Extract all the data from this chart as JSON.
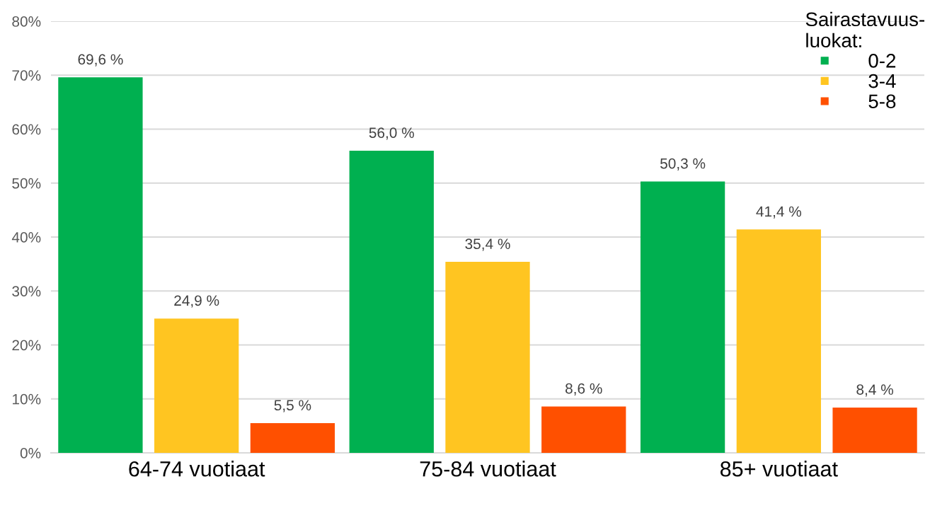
{
  "chart_data": {
    "type": "bar",
    "categories": [
      "64-74 vuotiaat",
      "75-84 vuotiaat",
      "85+ vuotiaat"
    ],
    "series": [
      {
        "name": "0-2",
        "color": "#00b050",
        "values": [
          69.6,
          56.0,
          50.3
        ],
        "value_labels": [
          "69,6 %",
          "56,0 %",
          "50,3 %"
        ]
      },
      {
        "name": "3-4",
        "color": "#ffc521",
        "values": [
          24.9,
          35.4,
          41.4
        ],
        "value_labels": [
          "24,9 %",
          "35,4 %",
          "41,4 %"
        ]
      },
      {
        "name": "5-8",
        "color": "#ff5000",
        "values": [
          5.5,
          8.6,
          8.4
        ],
        "value_labels": [
          "5,5 %",
          "8,6 %",
          "8,4 %"
        ]
      }
    ],
    "legend_title": "Sairastavuus-\nluokat:",
    "legend": "top right",
    "grid": "y",
    "ylim": [
      0,
      80
    ],
    "yticks": [
      {
        "value": 0,
        "label": "0%"
      },
      {
        "value": 10,
        "label": "10%"
      },
      {
        "value": 20,
        "label": "20%"
      },
      {
        "value": 30,
        "label": "30%"
      },
      {
        "value": 40,
        "label": "40%"
      },
      {
        "value": 50,
        "label": "50%"
      },
      {
        "value": 60,
        "label": "60%"
      },
      {
        "value": 70,
        "label": "70%"
      },
      {
        "value": 80,
        "label": "80%"
      }
    ]
  }
}
